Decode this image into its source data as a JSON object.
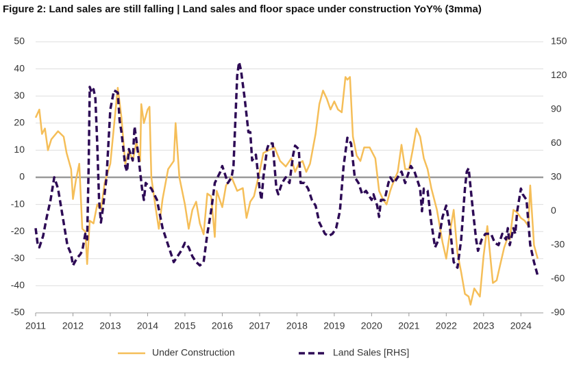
{
  "chart_data": {
    "type": "line",
    "title": "Figure 2: Land sales are still falling | Land sales and floor space under construction YoY% (3mma)",
    "xlim": [
      2011,
      2024.6
    ],
    "xticks": [
      2011,
      2012,
      2013,
      2014,
      2015,
      2016,
      2017,
      2018,
      2019,
      2020,
      2021,
      2022,
      2023,
      2024
    ],
    "ylim": [
      -50,
      50
    ],
    "yticks": [
      -50,
      -40,
      -30,
      -20,
      -10,
      0,
      10,
      20,
      30,
      40,
      50
    ],
    "y2lim": [
      -90,
      150
    ],
    "y2ticks": [
      -90,
      -60,
      -30,
      0,
      30,
      60,
      90,
      120,
      150
    ],
    "grid": true,
    "legend": "bottom",
    "series": [
      {
        "name": "Under Construction",
        "color": "#f5be58",
        "axis": "y",
        "x": [
          2011.0,
          2011.1,
          2011.17,
          2011.25,
          2011.33,
          2011.42,
          2011.6,
          2011.75,
          2011.83,
          2011.95,
          2012.0,
          2012.08,
          2012.17,
          2012.25,
          2012.33,
          2012.38,
          2012.45,
          2012.55,
          2012.65,
          2012.75,
          2012.85,
          2013.0,
          2013.1,
          2013.2,
          2013.3,
          2013.4,
          2013.5,
          2013.6,
          2013.7,
          2013.8,
          2013.83,
          2013.9,
          2014.0,
          2014.05,
          2014.1,
          2014.2,
          2014.3,
          2014.4,
          2014.55,
          2014.7,
          2014.75,
          2014.85,
          2015.0,
          2015.1,
          2015.2,
          2015.3,
          2015.4,
          2015.5,
          2015.6,
          2015.7,
          2015.8,
          2015.85,
          2016.0,
          2016.1,
          2016.25,
          2016.4,
          2016.55,
          2016.65,
          2016.75,
          2016.85,
          2017.0,
          2017.1,
          2017.25,
          2017.4,
          2017.55,
          2017.7,
          2017.85,
          2017.95,
          2018.05,
          2018.15,
          2018.25,
          2018.35,
          2018.5,
          2018.6,
          2018.7,
          2018.8,
          2018.9,
          2019.0,
          2019.1,
          2019.2,
          2019.3,
          2019.35,
          2019.42,
          2019.5,
          2019.6,
          2019.7,
          2019.8,
          2019.95,
          2020.1,
          2020.2,
          2020.3,
          2020.4,
          2020.5,
          2020.55,
          2020.7,
          2020.8,
          2020.9,
          2021.0,
          2021.1,
          2021.2,
          2021.3,
          2021.4,
          2021.5,
          2021.6,
          2021.75,
          2021.9,
          2022.0,
          2022.1,
          2022.2,
          2022.3,
          2022.4,
          2022.5,
          2022.6,
          2022.65,
          2022.75,
          2022.85,
          2022.9,
          2023.0,
          2023.1,
          2023.25,
          2023.35,
          2023.45,
          2023.55,
          2023.65,
          2023.7,
          2023.8,
          2023.9,
          2024.0,
          2024.1,
          2024.2,
          2024.25,
          2024.35,
          2024.45
        ],
        "values": [
          22,
          25,
          16,
          18,
          10,
          14,
          17,
          15,
          9,
          3,
          -8,
          -1,
          5,
          -19,
          -20,
          -32,
          -16,
          -17,
          -10,
          -12,
          -2,
          5,
          19,
          33,
          22,
          5,
          10,
          6,
          13,
          6,
          27,
          20,
          25,
          26,
          0,
          -10,
          -19,
          -8,
          3,
          6,
          20,
          0,
          -10,
          -19,
          -12,
          -9,
          -17,
          -21,
          -6,
          -7,
          -22,
          -5,
          -11,
          -3,
          0,
          -5,
          -4,
          -15,
          -9,
          -7,
          2,
          9,
          10,
          11,
          6,
          4,
          7,
          2,
          5,
          6,
          2,
          5,
          16,
          27,
          32,
          29,
          25,
          28,
          25,
          24,
          37,
          36,
          37,
          15,
          8,
          6,
          11,
          11,
          7,
          -5,
          -8,
          -10,
          -5,
          -3,
          2,
          12,
          3,
          3,
          10,
          18,
          15,
          7,
          3,
          -4,
          -12,
          -24,
          -30,
          -20,
          -12,
          -28,
          -35,
          -43,
          -44,
          -47,
          -41,
          -43,
          -44,
          -29,
          -18,
          -39,
          -38,
          -32,
          -26,
          -22,
          -23,
          -12,
          -13,
          -15,
          -16,
          -18,
          -3,
          -25,
          -30
        ]
      },
      {
        "name": "Land Sales [RHS]",
        "color": "#2d0a55",
        "axis": "y2",
        "x": [
          2011.0,
          2011.05,
          2011.1,
          2011.2,
          2011.3,
          2011.4,
          2011.5,
          2011.6,
          2011.75,
          2011.85,
          2011.95,
          2012.0,
          2012.1,
          2012.2,
          2012.25,
          2012.33,
          2012.38,
          2012.42,
          2012.45,
          2012.5,
          2012.55,
          2012.6,
          2012.65,
          2012.7,
          2012.75,
          2012.8,
          2012.9,
          2013.0,
          2013.1,
          2013.2,
          2013.25,
          2013.3,
          2013.4,
          2013.45,
          2013.5,
          2013.6,
          2013.65,
          2013.75,
          2013.85,
          2013.9,
          2013.95,
          2014.1,
          2014.25,
          2014.4,
          2014.55,
          2014.65,
          2014.7,
          2014.8,
          2014.9,
          2015.0,
          2015.1,
          2015.2,
          2015.3,
          2015.4,
          2015.5,
          2015.6,
          2015.7,
          2015.8,
          2015.95,
          2016.0,
          2016.1,
          2016.15,
          2016.25,
          2016.3,
          2016.4,
          2016.45,
          2016.5,
          2016.6,
          2016.7,
          2016.75,
          2016.8,
          2016.9,
          2017.0,
          2017.05,
          2017.1,
          2017.2,
          2017.25,
          2017.35,
          2017.45,
          2017.5,
          2017.6,
          2017.7,
          2017.8,
          2017.9,
          2017.95,
          2018.05,
          2018.1,
          2018.2,
          2018.3,
          2018.4,
          2018.5,
          2018.6,
          2018.75,
          2018.85,
          2018.95,
          2019.05,
          2019.15,
          2019.25,
          2019.35,
          2019.45,
          2019.55,
          2019.65,
          2019.75,
          2019.85,
          2020.0,
          2020.05,
          2020.15,
          2020.2,
          2020.25,
          2020.35,
          2020.45,
          2020.5,
          2020.6,
          2020.7,
          2020.8,
          2020.9,
          2020.95,
          2021.05,
          2021.15,
          2021.25,
          2021.3,
          2021.35,
          2021.4,
          2021.5,
          2021.6,
          2021.7,
          2021.8,
          2021.9,
          2022.0,
          2022.1,
          2022.2,
          2022.3,
          2022.4,
          2022.5,
          2022.55,
          2022.6,
          2022.7,
          2022.8,
          2022.85,
          2022.95,
          2023.05,
          2023.2,
          2023.3,
          2023.4,
          2023.5,
          2023.6,
          2023.65,
          2023.7,
          2023.8,
          2023.85,
          2023.9,
          2024.0,
          2024.05,
          2024.15,
          2024.25,
          2024.35,
          2024.45
        ],
        "values": [
          -15,
          -28,
          -32,
          -22,
          -5,
          10,
          30,
          20,
          -10,
          -30,
          -38,
          -48,
          -42,
          -38,
          -35,
          -20,
          -25,
          40,
          110,
          105,
          108,
          100,
          60,
          10,
          -10,
          2,
          30,
          90,
          107,
          105,
          80,
          70,
          40,
          35,
          55,
          45,
          75,
          50,
          20,
          10,
          25,
          20,
          10,
          -15,
          -30,
          -40,
          -45,
          -40,
          -35,
          -28,
          -32,
          -40,
          -45,
          -48,
          -45,
          -20,
          0,
          25,
          35,
          40,
          30,
          25,
          30,
          40,
          120,
          132,
          125,
          100,
          70,
          70,
          45,
          50,
          20,
          10,
          30,
          55,
          60,
          60,
          20,
          15,
          25,
          30,
          25,
          50,
          58,
          55,
          25,
          25,
          20,
          10,
          5,
          -10,
          -20,
          -22,
          -20,
          -15,
          0,
          40,
          65,
          60,
          30,
          25,
          15,
          18,
          10,
          15,
          5,
          -5,
          10,
          10,
          25,
          30,
          25,
          30,
          35,
          25,
          30,
          40,
          35,
          25,
          20,
          0,
          20,
          18,
          -10,
          -32,
          -25,
          -5,
          5,
          -15,
          -45,
          -50,
          -25,
          20,
          35,
          38,
          5,
          -25,
          -35,
          -25,
          -20,
          -20,
          -28,
          -30,
          -20,
          -25,
          -15,
          -30,
          -15,
          -20,
          0,
          20,
          15,
          10,
          -30,
          -45,
          -57
        ]
      }
    ]
  }
}
